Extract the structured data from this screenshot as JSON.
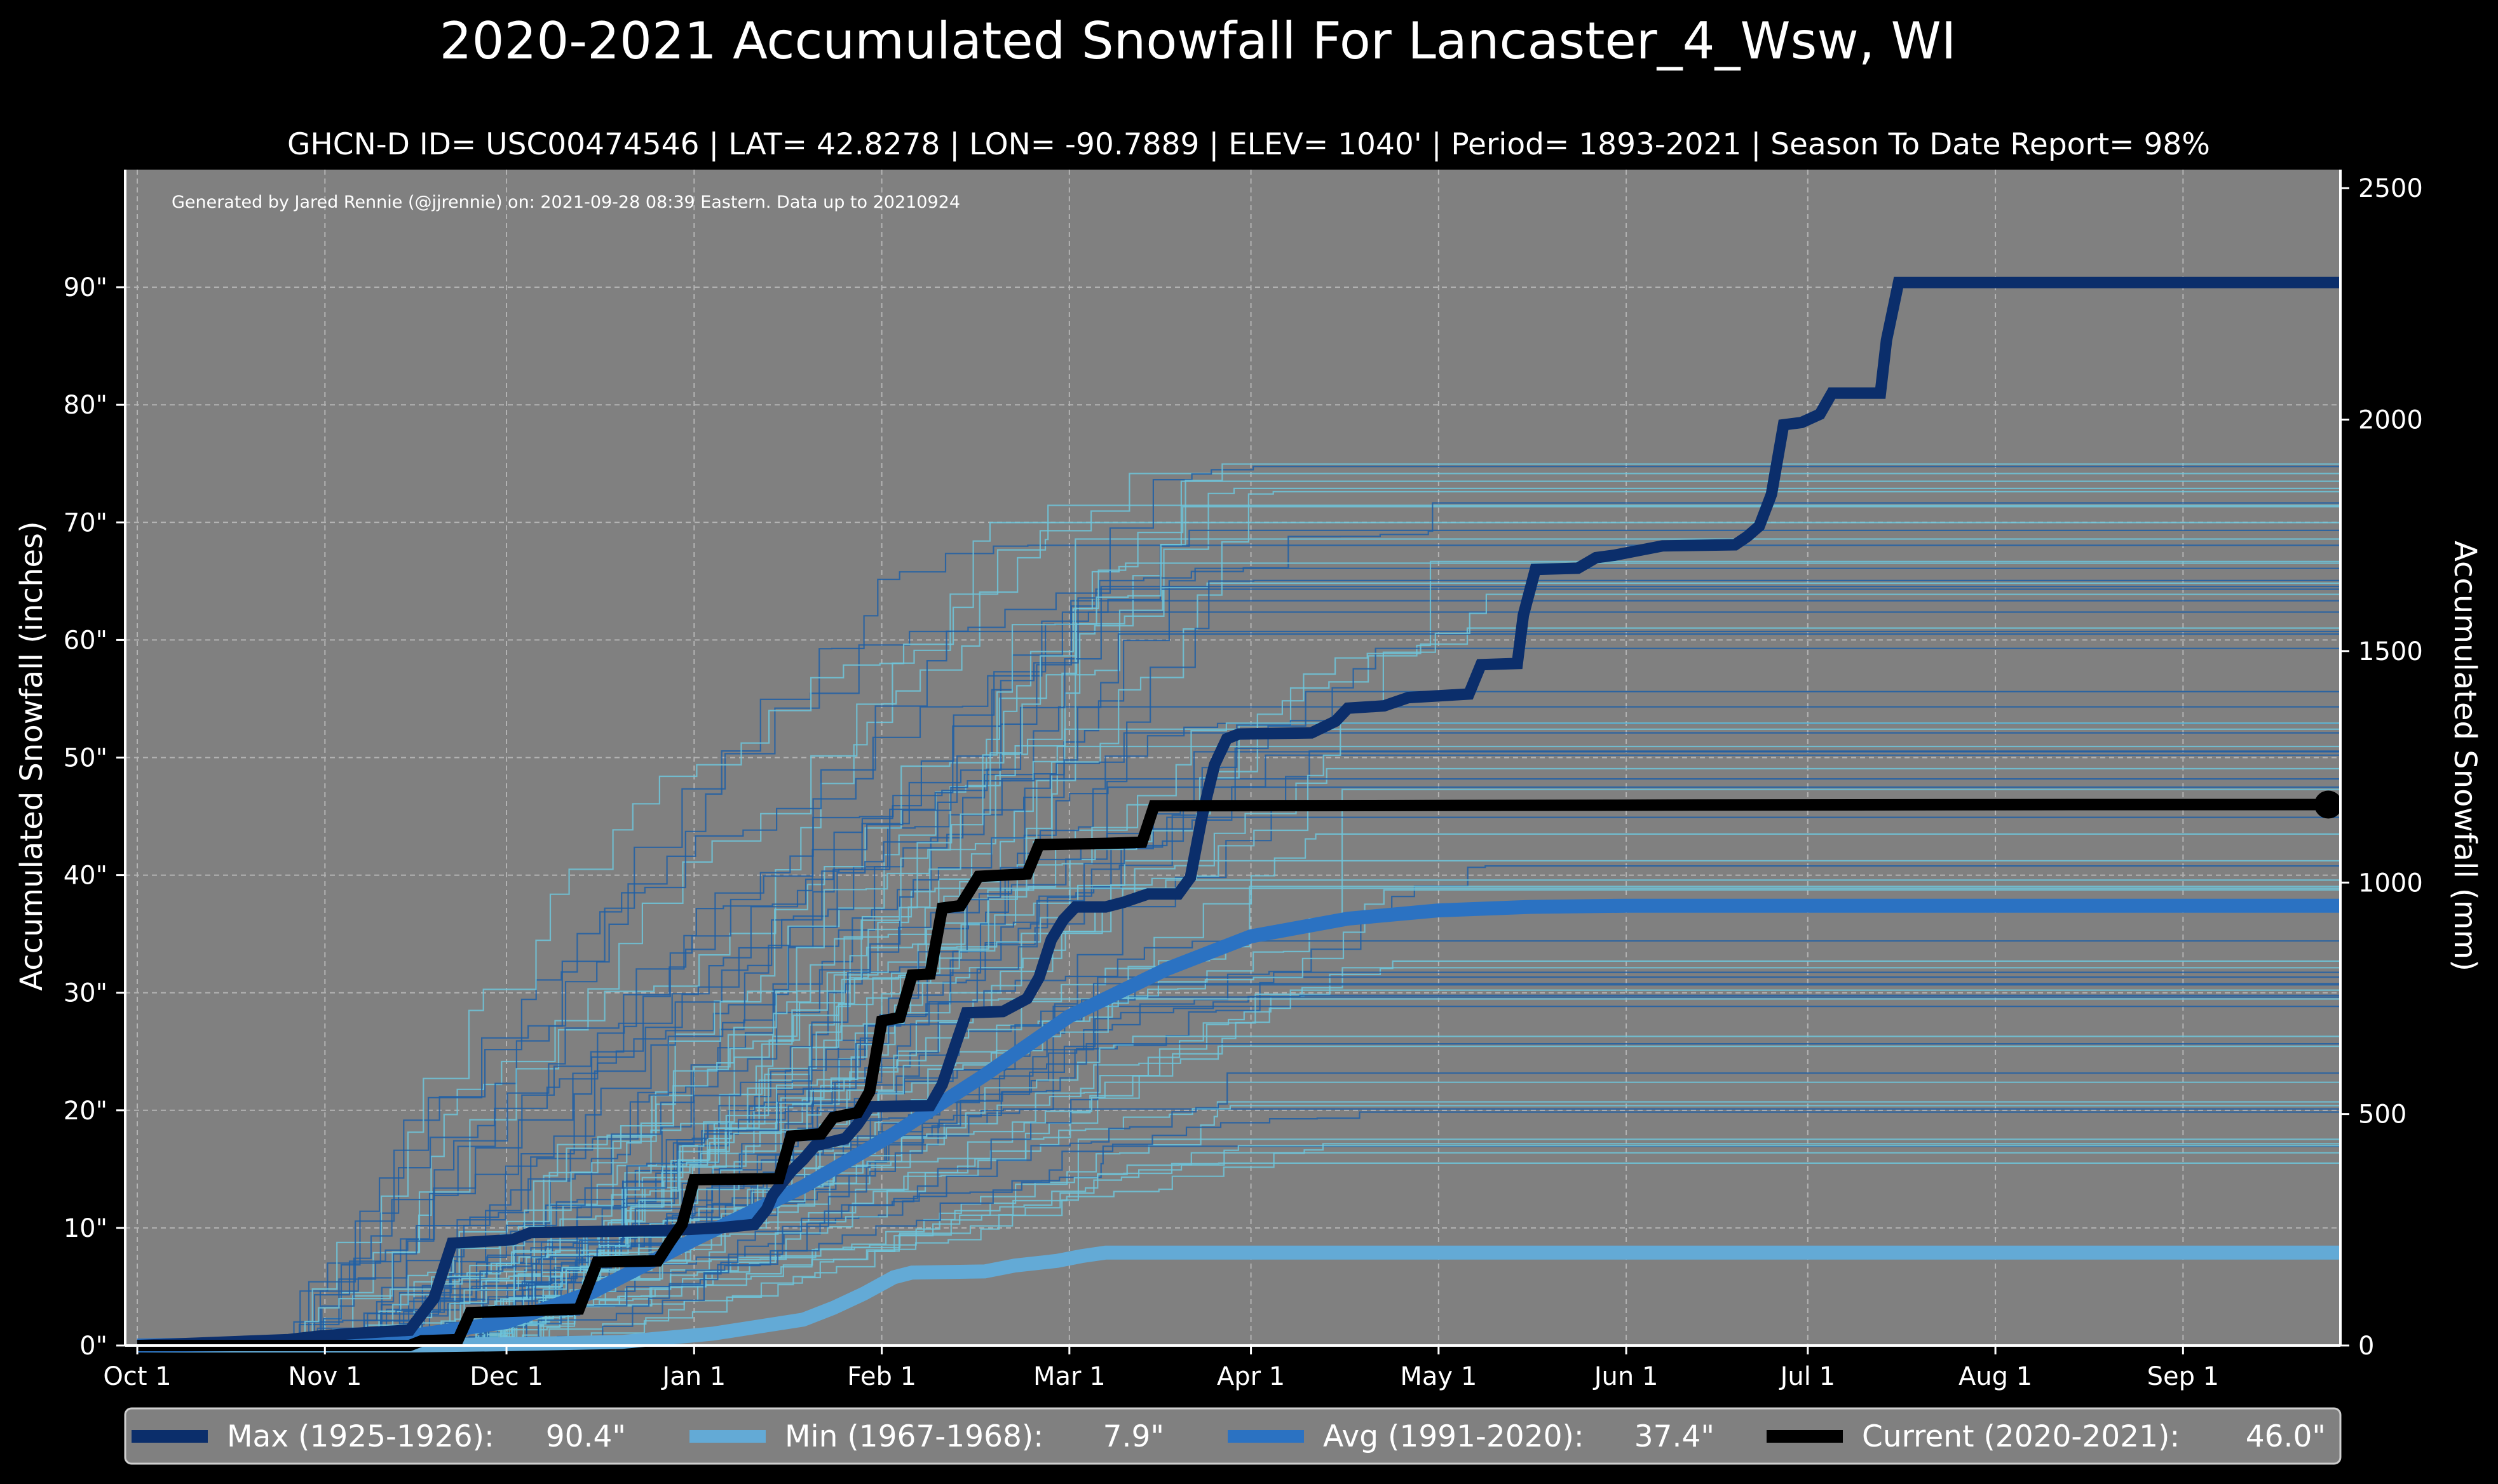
{
  "chart_data": {
    "type": "line",
    "title": "2020-2021 Accumulated Snowfall For Lancaster_4_Wsw, WI",
    "subtitle": "GHCN-D ID= USC00474546 | LAT= 42.8278 | LON= -90.7889 | ELEV= 1040' | Period= 1893-2021 | Season To Date Report= 98%",
    "credit": "Generated by Jared Rennie (@jjrennie) on: 2021-09-28 08:39 Eastern. Data up to 20210924",
    "ylabel_left": "Accumulated Snowfall (inches)",
    "ylabel_right": "Accumulated Snowfall (mm)",
    "xlim_days": [
      -2,
      364
    ],
    "ylim_inches": [
      0,
      100
    ],
    "ylim_mm": [
      0,
      2540
    ],
    "x_ticks": [
      {
        "label": "Oct 1",
        "day": 0
      },
      {
        "label": "Nov 1",
        "day": 31
      },
      {
        "label": "Dec 1",
        "day": 61
      },
      {
        "label": "Jan 1",
        "day": 92
      },
      {
        "label": "Feb 1",
        "day": 123
      },
      {
        "label": "Mar 1",
        "day": 154
      },
      {
        "label": "Apr 1",
        "day": 184
      },
      {
        "label": "May 1",
        "day": 215
      },
      {
        "label": "Jun 1",
        "day": 246
      },
      {
        "label": "Jul 1",
        "day": 276
      },
      {
        "label": "Aug 1",
        "day": 307
      },
      {
        "label": "Sep 1",
        "day": 338
      }
    ],
    "y_ticks_left": [
      {
        "label": "0\"",
        "value": 0
      },
      {
        "label": "10\"",
        "value": 10
      },
      {
        "label": "20\"",
        "value": 20
      },
      {
        "label": "30\"",
        "value": 30
      },
      {
        "label": "40\"",
        "value": 40
      },
      {
        "label": "50\"",
        "value": 50
      },
      {
        "label": "60\"",
        "value": 60
      },
      {
        "label": "70\"",
        "value": 70
      },
      {
        "label": "80\"",
        "value": 80
      },
      {
        "label": "90\"",
        "value": 90
      }
    ],
    "y_ticks_right": [
      {
        "label": "0",
        "value": 0
      },
      {
        "label": "500",
        "value": 500
      },
      {
        "label": "1000",
        "value": 1000
      },
      {
        "label": "1500",
        "value": 1500
      },
      {
        "label": "2000",
        "value": 2000
      },
      {
        "label": "2500",
        "value": 2500
      }
    ],
    "colors": {
      "max": "#0b2e6b",
      "min": "#63aad6",
      "avg": "#2b72c2",
      "current": "#000000",
      "plot_bg": "#808080",
      "grid": "#b3b3b3",
      "hist_dark": "#1f5fa6",
      "hist_light": "#6ec5da"
    },
    "series": [
      {
        "id": "max",
        "name": "Max (1925-1926)",
        "final": 90.4,
        "points": [
          [
            0,
            0
          ],
          [
            25,
            0.5
          ],
          [
            30,
            0.8
          ],
          [
            35,
            1
          ],
          [
            45,
            1.3
          ],
          [
            46,
            2
          ],
          [
            49,
            4
          ],
          [
            52,
            8.7
          ],
          [
            62,
            9
          ],
          [
            65,
            9.6
          ],
          [
            88,
            9.8
          ],
          [
            96,
            10
          ],
          [
            102,
            10.3
          ],
          [
            104,
            11.6
          ],
          [
            105,
            12.8
          ],
          [
            108,
            14.8
          ],
          [
            110,
            15.8
          ],
          [
            112,
            17
          ],
          [
            117,
            17.6
          ],
          [
            119,
            18.8
          ],
          [
            121,
            20.3
          ],
          [
            131,
            20.4
          ],
          [
            133,
            22.2
          ],
          [
            135,
            25.3
          ],
          [
            137,
            28.3
          ],
          [
            143,
            28.4
          ],
          [
            147,
            29.5
          ],
          [
            149,
            31.3
          ],
          [
            151,
            34.5
          ],
          [
            153,
            36.2
          ],
          [
            155,
            37.3
          ],
          [
            160,
            37.3
          ],
          [
            163,
            37.7
          ],
          [
            167,
            38.4
          ],
          [
            172,
            38.4
          ],
          [
            174,
            39.8
          ],
          [
            176,
            45.2
          ],
          [
            178,
            49.4
          ],
          [
            180,
            51.6
          ],
          [
            182,
            52
          ],
          [
            194,
            52.1
          ],
          [
            196,
            52.6
          ],
          [
            198,
            53.1
          ],
          [
            200,
            54.2
          ],
          [
            206,
            54.4
          ],
          [
            210,
            55.1
          ],
          [
            220,
            55.4
          ],
          [
            222,
            57.9
          ],
          [
            228,
            58
          ],
          [
            229,
            62.1
          ],
          [
            231,
            66
          ],
          [
            238,
            66.1
          ],
          [
            241,
            67
          ],
          [
            244,
            67.2
          ],
          [
            248,
            67.6
          ],
          [
            252,
            68
          ],
          [
            264,
            68.1
          ],
          [
            266,
            68.8
          ],
          [
            268,
            69.7
          ],
          [
            270,
            72.4
          ],
          [
            272,
            78.3
          ],
          [
            275,
            78.5
          ],
          [
            278,
            79.2
          ],
          [
            280,
            81
          ],
          [
            288,
            81
          ],
          [
            289,
            85.5
          ],
          [
            291,
            90.4
          ],
          [
            364,
            90.4
          ]
        ]
      },
      {
        "id": "min",
        "name": "Min (1967-1968)",
        "final": 7.9,
        "points": [
          [
            0,
            0
          ],
          [
            45,
            0
          ],
          [
            60,
            0.1
          ],
          [
            80,
            0.3
          ],
          [
            95,
            1
          ],
          [
            100,
            1.4
          ],
          [
            110,
            2.2
          ],
          [
            115,
            3.2
          ],
          [
            120,
            4.4
          ],
          [
            125,
            5.8
          ],
          [
            128,
            6.2
          ],
          [
            140,
            6.3
          ],
          [
            145,
            6.8
          ],
          [
            152,
            7.2
          ],
          [
            156,
            7.6
          ],
          [
            160,
            7.9
          ],
          [
            364,
            7.9
          ]
        ]
      },
      {
        "id": "avg",
        "name": "Avg (1991-2020)",
        "final": 37.4,
        "points": [
          [
            0,
            0
          ],
          [
            15,
            0.1
          ],
          [
            31,
            0.3
          ],
          [
            45,
            0.8
          ],
          [
            61,
            2
          ],
          [
            75,
            4.5
          ],
          [
            92,
            9
          ],
          [
            110,
            13.5
          ],
          [
            125,
            18
          ],
          [
            140,
            23
          ],
          [
            154,
            28
          ],
          [
            170,
            32
          ],
          [
            184,
            34.8
          ],
          [
            200,
            36.3
          ],
          [
            215,
            37
          ],
          [
            230,
            37.3
          ],
          [
            246,
            37.4
          ],
          [
            364,
            37.4
          ]
        ]
      },
      {
        "id": "current",
        "name": "Current (2020-2021)",
        "final": 46.0,
        "points": [
          [
            0,
            0
          ],
          [
            45,
            0
          ],
          [
            47,
            0.4
          ],
          [
            53,
            0.5
          ],
          [
            55,
            2.8
          ],
          [
            73,
            3.1
          ],
          [
            76,
            7.1
          ],
          [
            86,
            7.2
          ],
          [
            88,
            8.8
          ],
          [
            90,
            10.3
          ],
          [
            92,
            14.1
          ],
          [
            106,
            14.2
          ],
          [
            108,
            17.8
          ],
          [
            113,
            18
          ],
          [
            115,
            19.4
          ],
          [
            119,
            19.8
          ],
          [
            121,
            21.6
          ],
          [
            123,
            27.6
          ],
          [
            126,
            27.9
          ],
          [
            128,
            31.5
          ],
          [
            131,
            31.6
          ],
          [
            133,
            37.2
          ],
          [
            136,
            37.4
          ],
          [
            139,
            39.9
          ],
          [
            147,
            40.1
          ],
          [
            149,
            42.6
          ],
          [
            160,
            42.7
          ],
          [
            166,
            42.8
          ],
          [
            168,
            45.9
          ],
          [
            320,
            46
          ],
          [
            362,
            46
          ]
        ],
        "end_marker": {
          "day": 362,
          "value": 46.0
        }
      }
    ],
    "historical_series_count": 76,
    "legend": [
      {
        "id": "max",
        "name": "Max (1925-1926):",
        "value": "90.4\""
      },
      {
        "id": "min",
        "name": "Min (1967-1968):",
        "value": "7.9\""
      },
      {
        "id": "avg",
        "name": "Avg (1991-2020):",
        "value": "37.4\""
      },
      {
        "id": "current",
        "name": "Current (2020-2021):",
        "value": "46.0\""
      }
    ],
    "legend_position": "bottom"
  }
}
